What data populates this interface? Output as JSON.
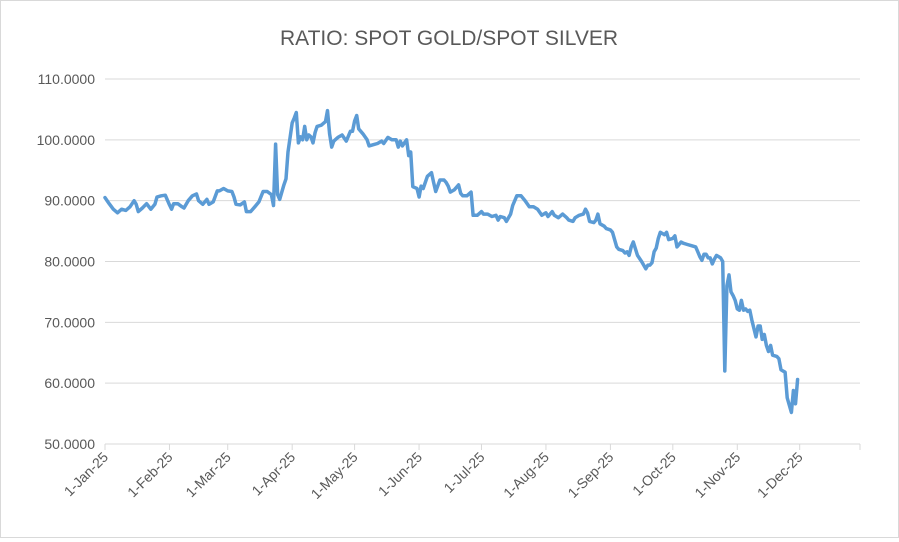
{
  "chart_data": {
    "type": "line",
    "title": "RATIO: SPOT GOLD/SPOT SILVER",
    "xlabel": "",
    "ylabel": "",
    "ylim": [
      50,
      110
    ],
    "y_ticks": [
      50,
      60,
      70,
      80,
      90,
      100,
      110
    ],
    "y_tick_labels": [
      "50.0000",
      "60.0000",
      "70.0000",
      "80.0000",
      "90.0000",
      "100.0000",
      "110.0000"
    ],
    "x_domain": [
      0,
      363
    ],
    "x_ticks": [
      {
        "day": 0,
        "label": "1-Jan-25"
      },
      {
        "day": 31,
        "label": "1-Feb-25"
      },
      {
        "day": 59,
        "label": "1-Mar-25"
      },
      {
        "day": 90,
        "label": "1-Apr-25"
      },
      {
        "day": 120,
        "label": "1-May-25"
      },
      {
        "day": 151,
        "label": "1-Jun-25"
      },
      {
        "day": 181,
        "label": "1-Jul-25"
      },
      {
        "day": 212,
        "label": "1-Aug-25"
      },
      {
        "day": 243,
        "label": "1-Sep-25"
      },
      {
        "day": 273,
        "label": "1-Oct-25"
      },
      {
        "day": 304,
        "label": "1-Nov-25"
      },
      {
        "day": 334,
        "label": "1-Dec-25"
      }
    ],
    "grid": true,
    "legend": "none",
    "series": [
      {
        "name": "Spot Gold / Spot Silver",
        "color": "#5b9bd5",
        "points": [
          [
            0,
            90.5
          ],
          [
            2,
            89.5
          ],
          [
            4,
            88.6
          ],
          [
            6,
            88.0
          ],
          [
            8,
            88.6
          ],
          [
            10,
            88.4
          ],
          [
            12,
            89.0
          ],
          [
            14,
            90.0
          ],
          [
            15,
            89.4
          ],
          [
            16,
            88.2
          ],
          [
            18,
            88.8
          ],
          [
            20,
            89.5
          ],
          [
            22,
            88.6
          ],
          [
            24,
            89.4
          ],
          [
            25,
            90.6
          ],
          [
            27,
            90.8
          ],
          [
            29,
            90.9
          ],
          [
            31,
            89.3
          ],
          [
            32,
            88.6
          ],
          [
            33,
            89.5
          ],
          [
            35,
            89.5
          ],
          [
            37,
            89.0
          ],
          [
            38,
            88.8
          ],
          [
            40,
            90.0
          ],
          [
            42,
            90.8
          ],
          [
            44,
            91.1
          ],
          [
            45,
            90.0
          ],
          [
            47,
            89.4
          ],
          [
            49,
            90.2
          ],
          [
            50,
            89.4
          ],
          [
            52,
            89.8
          ],
          [
            54,
            91.6
          ],
          [
            55,
            91.6
          ],
          [
            57,
            92.0
          ],
          [
            59,
            91.6
          ],
          [
            61,
            91.5
          ],
          [
            62,
            90.6
          ],
          [
            63,
            89.4
          ],
          [
            65,
            89.3
          ],
          [
            67,
            89.8
          ],
          [
            68,
            88.2
          ],
          [
            70,
            88.2
          ],
          [
            72,
            89.0
          ],
          [
            74,
            89.8
          ],
          [
            76,
            91.5
          ],
          [
            78,
            91.5
          ],
          [
            80,
            91.0
          ],
          [
            81,
            89.2
          ],
          [
            82,
            99.3
          ],
          [
            83,
            91.0
          ],
          [
            84,
            90.2
          ],
          [
            86,
            92.6
          ],
          [
            87,
            93.6
          ],
          [
            88,
            98.0
          ],
          [
            90,
            102.8
          ],
          [
            91,
            103.6
          ],
          [
            92,
            104.5
          ],
          [
            93,
            99.5
          ],
          [
            94,
            100.5
          ],
          [
            95,
            100.0
          ],
          [
            96,
            102.2
          ],
          [
            97,
            100.0
          ],
          [
            98,
            100.8
          ],
          [
            99,
            100.5
          ],
          [
            100,
            99.5
          ],
          [
            101,
            101.2
          ],
          [
            102,
            102.2
          ],
          [
            104,
            102.4
          ],
          [
            106,
            103.0
          ],
          [
            107,
            104.8
          ],
          [
            108,
            101.0
          ],
          [
            109,
            98.8
          ],
          [
            110,
            99.8
          ],
          [
            112,
            100.4
          ],
          [
            114,
            100.8
          ],
          [
            116,
            99.8
          ],
          [
            118,
            101.4
          ],
          [
            119,
            101.4
          ],
          [
            120,
            103.1
          ],
          [
            121,
            104.0
          ],
          [
            122,
            101.8
          ],
          [
            124,
            101.0
          ],
          [
            126,
            100.0
          ],
          [
            127,
            99.0
          ],
          [
            129,
            99.2
          ],
          [
            131,
            99.4
          ],
          [
            133,
            99.8
          ],
          [
            134,
            99.4
          ],
          [
            136,
            100.4
          ],
          [
            137,
            100.2
          ],
          [
            138,
            100.0
          ],
          [
            140,
            100.0
          ],
          [
            141,
            98.8
          ],
          [
            142,
            99.8
          ],
          [
            143,
            99.0
          ],
          [
            145,
            100.0
          ],
          [
            146,
            97.4
          ],
          [
            147,
            98.0
          ],
          [
            148,
            92.3
          ],
          [
            150,
            92.0
          ],
          [
            151,
            90.6
          ],
          [
            152,
            92.4
          ],
          [
            153,
            92.0
          ],
          [
            155,
            94.0
          ],
          [
            157,
            94.6
          ],
          [
            158,
            93.0
          ],
          [
            159,
            91.5
          ],
          [
            161,
            93.4
          ],
          [
            163,
            93.4
          ],
          [
            164,
            93.0
          ],
          [
            165,
            92.4
          ],
          [
            166,
            91.4
          ],
          [
            168,
            91.8
          ],
          [
            170,
            92.6
          ],
          [
            171,
            91.2
          ],
          [
            172,
            90.8
          ],
          [
            174,
            90.8
          ],
          [
            176,
            91.4
          ],
          [
            177,
            87.6
          ],
          [
            179,
            87.6
          ],
          [
            181,
            88.2
          ],
          [
            182,
            87.8
          ],
          [
            184,
            87.8
          ],
          [
            186,
            87.4
          ],
          [
            188,
            87.6
          ],
          [
            189,
            86.8
          ],
          [
            190,
            87.4
          ],
          [
            192,
            87.2
          ],
          [
            193,
            86.6
          ],
          [
            195,
            87.8
          ],
          [
            196,
            89.2
          ],
          [
            198,
            90.8
          ],
          [
            200,
            90.8
          ],
          [
            202,
            90.0
          ],
          [
            204,
            89.0
          ],
          [
            206,
            89.0
          ],
          [
            208,
            88.6
          ],
          [
            210,
            87.6
          ],
          [
            212,
            88.0
          ],
          [
            213,
            87.4
          ],
          [
            215,
            88.2
          ],
          [
            216,
            87.6
          ],
          [
            218,
            87.2
          ],
          [
            220,
            87.8
          ],
          [
            222,
            87.2
          ],
          [
            223,
            86.8
          ],
          [
            225,
            86.6
          ],
          [
            226,
            87.2
          ],
          [
            228,
            87.6
          ],
          [
            230,
            87.8
          ],
          [
            231,
            88.6
          ],
          [
            232,
            88.0
          ],
          [
            233,
            86.6
          ],
          [
            235,
            86.4
          ],
          [
            236,
            86.8
          ],
          [
            237,
            87.8
          ],
          [
            238,
            86.2
          ],
          [
            240,
            85.8
          ],
          [
            241,
            85.4
          ],
          [
            243,
            85.2
          ],
          [
            244,
            84.8
          ],
          [
            246,
            82.4
          ],
          [
            247,
            82.0
          ],
          [
            249,
            81.8
          ],
          [
            250,
            81.4
          ],
          [
            251,
            81.6
          ],
          [
            252,
            81.0
          ],
          [
            253,
            82.4
          ],
          [
            254,
            83.2
          ],
          [
            256,
            81.0
          ],
          [
            258,
            80.0
          ],
          [
            259,
            79.4
          ],
          [
            260,
            78.8
          ],
          [
            261,
            79.4
          ],
          [
            262,
            79.4
          ],
          [
            263,
            79.8
          ],
          [
            264,
            81.6
          ],
          [
            265,
            82.2
          ],
          [
            266,
            83.8
          ],
          [
            267,
            84.8
          ],
          [
            268,
            84.6
          ],
          [
            269,
            84.4
          ],
          [
            270,
            84.8
          ],
          [
            271,
            83.6
          ],
          [
            273,
            83.8
          ],
          [
            274,
            84.2
          ],
          [
            275,
            82.4
          ],
          [
            276,
            82.8
          ],
          [
            277,
            83.2
          ],
          [
            278,
            83.0
          ],
          [
            280,
            82.8
          ],
          [
            282,
            82.6
          ],
          [
            284,
            82.4
          ],
          [
            285,
            81.6
          ],
          [
            286,
            80.8
          ],
          [
            287,
            80.2
          ],
          [
            288,
            81.2
          ],
          [
            289,
            81.2
          ],
          [
            290,
            80.6
          ],
          [
            291,
            80.6
          ],
          [
            292,
            79.6
          ],
          [
            293,
            80.4
          ],
          [
            294,
            81.0
          ],
          [
            295,
            80.8
          ],
          [
            296,
            80.6
          ],
          [
            297,
            80.0
          ],
          [
            298,
            62.0
          ],
          [
            299,
            76.0
          ],
          [
            300,
            77.8
          ],
          [
            301,
            75.0
          ],
          [
            302,
            74.4
          ],
          [
            303,
            73.6
          ],
          [
            304,
            72.2
          ],
          [
            305,
            72.0
          ],
          [
            306,
            73.6
          ],
          [
            307,
            72.0
          ],
          [
            308,
            72.2
          ],
          [
            309,
            71.8
          ],
          [
            310,
            72.0
          ],
          [
            311,
            70.4
          ],
          [
            312,
            69.0
          ],
          [
            313,
            67.6
          ],
          [
            314,
            69.4
          ],
          [
            315,
            69.4
          ],
          [
            316,
            67.2
          ],
          [
            317,
            68.0
          ],
          [
            318,
            66.2
          ],
          [
            319,
            65.2
          ],
          [
            320,
            66.2
          ],
          [
            321,
            64.6
          ],
          [
            323,
            64.4
          ],
          [
            324,
            64.0
          ],
          [
            325,
            62.2
          ],
          [
            326,
            62.0
          ],
          [
            327,
            61.8
          ],
          [
            328,
            57.6
          ],
          [
            329,
            56.4
          ],
          [
            330,
            55.2
          ],
          [
            331,
            58.8
          ],
          [
            332,
            56.6
          ],
          [
            333,
            60.6
          ]
        ]
      }
    ]
  }
}
